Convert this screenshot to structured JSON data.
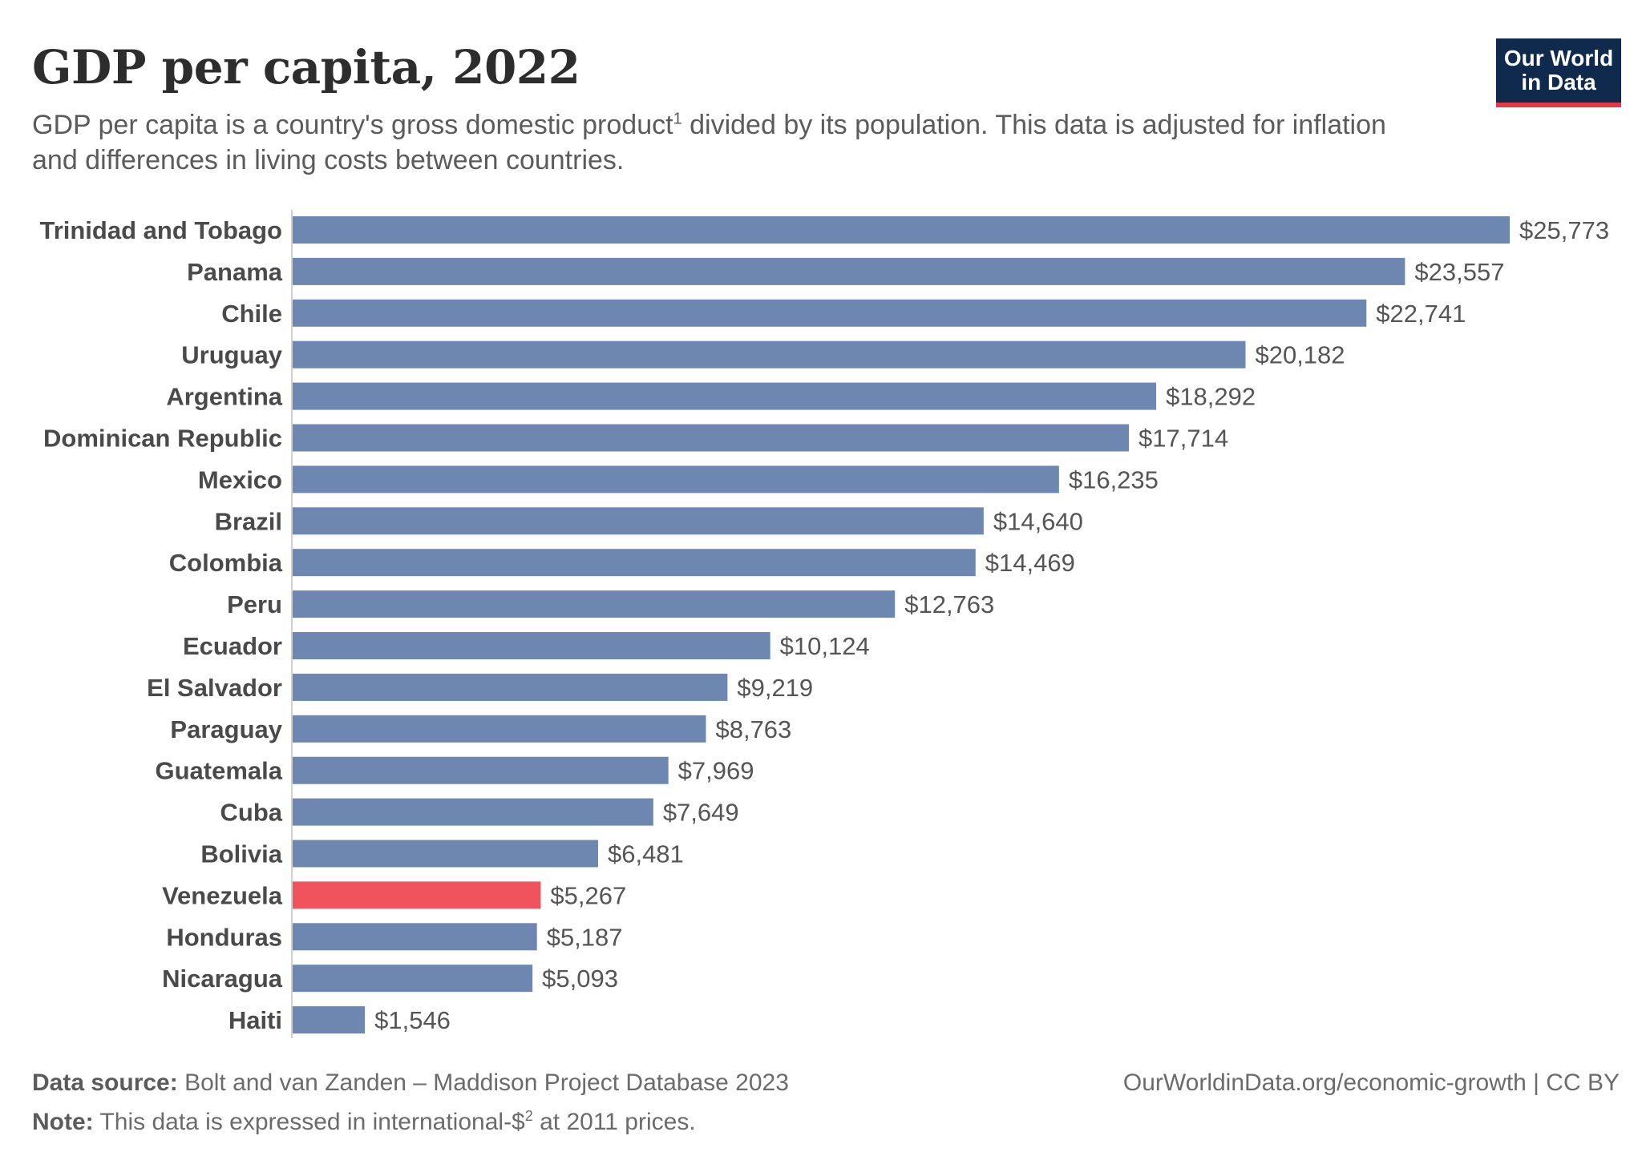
{
  "header": {
    "title": "GDP per capita, 2022",
    "subtitle_part1": "GDP per capita is a country's gross domestic product",
    "subtitle_sup1": "1",
    "subtitle_part2": " divided by its population. This data is adjusted for inflation and differences in living costs between countries."
  },
  "logo": {
    "line1": "Our World",
    "line2": "in Data"
  },
  "colors": {
    "bar": "#6d87b1",
    "highlight": "#f0525e",
    "logo_bg": "#0f2a4c",
    "logo_accent": "#e63946"
  },
  "chart_data": {
    "type": "bar",
    "orientation": "horizontal",
    "categories": [
      "Trinidad and Tobago",
      "Panama",
      "Chile",
      "Uruguay",
      "Argentina",
      "Dominican Republic",
      "Mexico",
      "Brazil",
      "Colombia",
      "Peru",
      "Ecuador",
      "El Salvador",
      "Paraguay",
      "Guatemala",
      "Cuba",
      "Bolivia",
      "Venezuela",
      "Honduras",
      "Nicaragua",
      "Haiti"
    ],
    "values": [
      25773,
      23557,
      22741,
      20182,
      18292,
      17714,
      16235,
      14640,
      14469,
      12763,
      10124,
      9219,
      8763,
      7969,
      7649,
      6481,
      5267,
      5187,
      5093,
      1546
    ],
    "value_labels": [
      "$25,773",
      "$23,557",
      "$22,741",
      "$20,182",
      "$18,292",
      "$17,714",
      "$16,235",
      "$14,640",
      "$14,469",
      "$12,763",
      "$10,124",
      "$9,219",
      "$8,763",
      "$7,969",
      "$7,649",
      "$6,481",
      "$5,267",
      "$5,187",
      "$5,093",
      "$1,546"
    ],
    "highlighted": [
      "Venezuela"
    ],
    "xlim": [
      0,
      25773
    ],
    "grid": false
  },
  "footer": {
    "source_label": "Data source:",
    "source_text": " Bolt and van Zanden – Maddison Project Database 2023",
    "note_label": "Note:",
    "note_text_part1": " This data is expressed in international-$",
    "note_sup": "2",
    "note_text_part2": " at 2011 prices.",
    "credit": "OurWorldinData.org/economic-growth | CC BY"
  }
}
